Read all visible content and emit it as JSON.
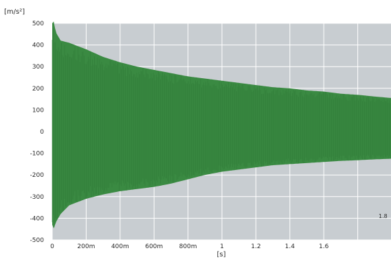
{
  "chart_data": {
    "type": "area",
    "title": "",
    "ylabel": "[m/s²]",
    "xlabel": "[s]",
    "ylim": [
      -500,
      500
    ],
    "xlim": [
      0,
      2.0
    ],
    "grid": true,
    "x_axis_ticks": [
      {
        "value": 0,
        "label": "0"
      },
      {
        "value": 0.2,
        "label": "200m"
      },
      {
        "value": 0.4,
        "label": "400m"
      },
      {
        "value": 0.6,
        "label": "600m"
      },
      {
        "value": 0.8,
        "label": "800m"
      },
      {
        "value": 1.0,
        "label": "1"
      },
      {
        "value": 1.2,
        "label": "1.2"
      },
      {
        "value": 1.4,
        "label": "1.4"
      },
      {
        "value": 1.6,
        "label": "1.6"
      },
      {
        "value": 1.8,
        "label": ""
      },
      {
        "value": 2.0,
        "label": ""
      }
    ],
    "y_axis_ticks": [
      {
        "value": 500,
        "label": "500"
      },
      {
        "value": 400,
        "label": "400"
      },
      {
        "value": 300,
        "label": "300"
      },
      {
        "value": 200,
        "label": "200"
      },
      {
        "value": 100,
        "label": "100"
      },
      {
        "value": 0,
        "label": "0"
      },
      {
        "value": -100,
        "label": "-100"
      },
      {
        "value": -200,
        "label": "-200"
      },
      {
        "value": -300,
        "label": "-300"
      },
      {
        "value": -400,
        "label": "-400"
      },
      {
        "value": -500,
        "label": "-500"
      }
    ],
    "annotation": "1.8",
    "series": [
      {
        "color": "#3a8a42",
        "x": [
          0.0,
          0.01,
          0.02,
          0.05,
          0.1,
          0.2,
          0.3,
          0.4,
          0.5,
          0.6,
          0.7,
          0.8,
          0.9,
          1.0,
          1.1,
          1.2,
          1.3,
          1.4,
          1.5,
          1.6,
          1.7,
          1.8,
          1.9,
          2.0
        ],
        "upper": [
          500,
          510,
          460,
          420,
          410,
          380,
          345,
          320,
          300,
          285,
          270,
          255,
          245,
          235,
          225,
          215,
          205,
          200,
          190,
          185,
          175,
          170,
          162,
          155
        ],
        "lower": [
          -430,
          -450,
          -420,
          -380,
          -340,
          -310,
          -290,
          -275,
          -265,
          -255,
          -240,
          -220,
          -200,
          -185,
          -175,
          -165,
          -155,
          -150,
          -145,
          -140,
          -135,
          -132,
          -128,
          -125
        ]
      }
    ]
  },
  "colors": {
    "plot_background": "#c8cdd1",
    "grid": "#ffffff",
    "signal": "#3a8a42",
    "text": "#2a2a2a"
  }
}
